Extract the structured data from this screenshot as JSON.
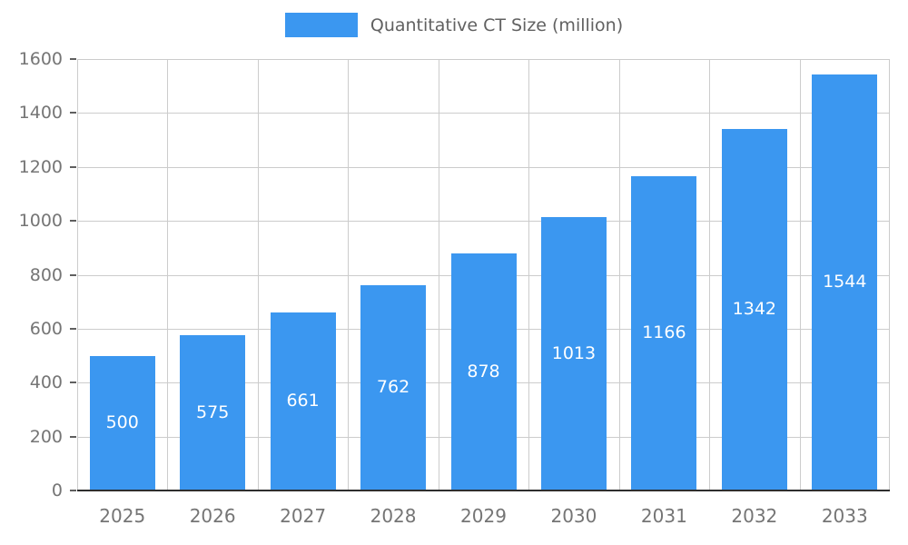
{
  "chart_data": {
    "type": "bar",
    "title": "Quantitative CT Size (million)",
    "categories": [
      "2025",
      "2026",
      "2027",
      "2028",
      "2029",
      "2030",
      "2031",
      "2032",
      "2033"
    ],
    "values": [
      500,
      575,
      661,
      762,
      878,
      1013,
      1166,
      1342,
      1544
    ],
    "series": [
      {
        "name": "Quantitative CT Size (million)",
        "values": [
          500,
          575,
          661,
          762,
          878,
          1013,
          1166,
          1342,
          1544
        ]
      }
    ],
    "xlabel": "",
    "ylabel": "",
    "ylim": [
      0,
      1600
    ],
    "yticks": [
      0,
      200,
      400,
      600,
      800,
      1000,
      1200,
      1400,
      1600
    ],
    "grid": true,
    "legend_position": "top",
    "bar_value_labels_inside": true,
    "colors": {
      "bar": "#3B97F0",
      "grid": "#cccccc",
      "axis_line": "#2e2e2e",
      "tick_text": "#757575",
      "legend_text": "#616161",
      "bar_label_text": "#ffffff",
      "background": "#ffffff"
    }
  }
}
